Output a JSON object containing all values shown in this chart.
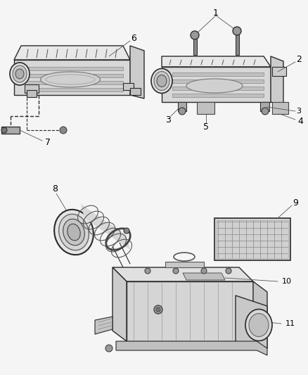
{
  "background_color": "#f5f5f5",
  "line_color": "#2a2a2a",
  "text_color": "#000000",
  "fig_width": 4.38,
  "fig_height": 5.33,
  "dpi": 100
}
